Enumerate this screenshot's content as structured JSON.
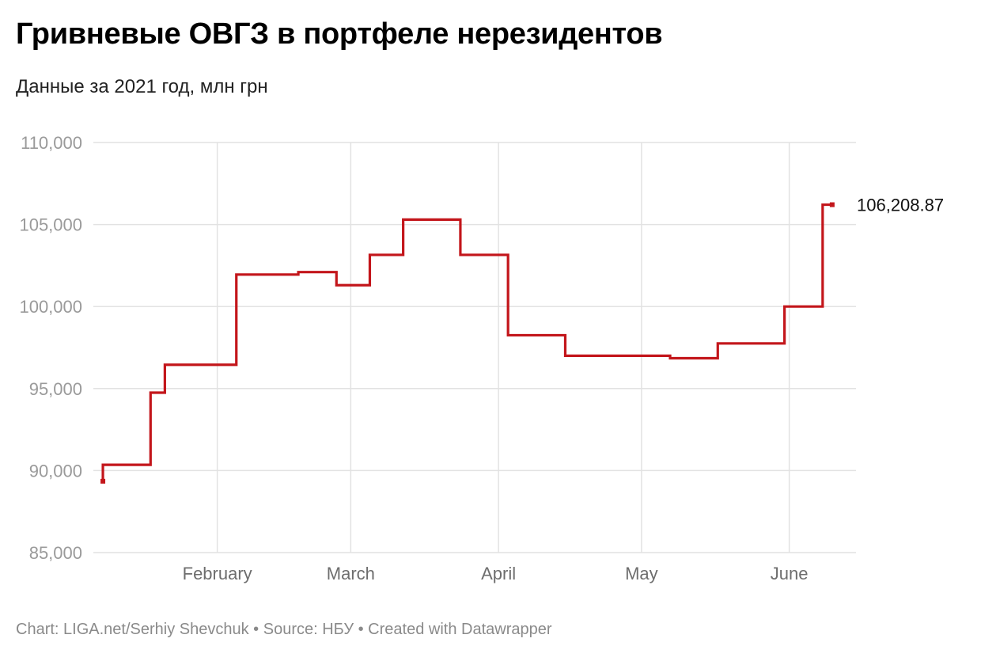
{
  "title": "Гривневые ОВГЗ в портфеле нерезидентов",
  "subtitle": "Данные за 2021 год, млн грн",
  "footer": {
    "chart_credit": "Chart: LIGA.net/Serhiy Shevchuk",
    "sep1": "•",
    "source": "Source: НБУ",
    "sep2": "•",
    "created": "Created with Datawrapper"
  },
  "colors": {
    "line": "#c3161b",
    "grid": "#e2e2e2",
    "tick_text": "#9a9a9a",
    "axis_label": "#6d6d6d"
  },
  "chart_data": {
    "type": "line",
    "interpolation": "step-after",
    "title": "Гривневые ОВГЗ в портфеле нерезидентов",
    "subtitle": "Данные за 2021 год, млн грн",
    "xlabel": "",
    "ylabel": "",
    "ylim": [
      85000,
      110000
    ],
    "xlim": [
      "2021-01-06",
      "2021-06-15"
    ],
    "y_ticks": [
      {
        "value": 110000,
        "label": "110,000"
      },
      {
        "value": 105000,
        "label": "105,000"
      },
      {
        "value": 100000,
        "label": "100,000"
      },
      {
        "value": 95000,
        "label": "95,000"
      },
      {
        "value": 90000,
        "label": "90,000"
      },
      {
        "value": 85000,
        "label": "85,000"
      }
    ],
    "x_ticks": [
      {
        "date": "2021-02-01",
        "label": "February"
      },
      {
        "date": "2021-03-01",
        "label": "March"
      },
      {
        "date": "2021-04-01",
        "label": "April"
      },
      {
        "date": "2021-05-01",
        "label": "May"
      },
      {
        "date": "2021-06-01",
        "label": "June"
      }
    ],
    "grid": true,
    "series": [
      {
        "name": "",
        "points": [
          {
            "date": "2021-01-08",
            "value": 89350
          },
          {
            "date": "2021-01-08",
            "value": 90350
          },
          {
            "date": "2021-01-18",
            "value": 94750
          },
          {
            "date": "2021-01-21",
            "value": 96450
          },
          {
            "date": "2021-02-05",
            "value": 101950
          },
          {
            "date": "2021-02-18",
            "value": 102100
          },
          {
            "date": "2021-02-26",
            "value": 101300
          },
          {
            "date": "2021-03-05",
            "value": 103150
          },
          {
            "date": "2021-03-12",
            "value": 105300
          },
          {
            "date": "2021-03-24",
            "value": 103150
          },
          {
            "date": "2021-04-03",
            "value": 98250
          },
          {
            "date": "2021-04-15",
            "value": 97000
          },
          {
            "date": "2021-05-07",
            "value": 96850
          },
          {
            "date": "2021-05-17",
            "value": 97750
          },
          {
            "date": "2021-05-31",
            "value": 100000
          },
          {
            "date": "2021-06-08",
            "value": 106208.87
          },
          {
            "date": "2021-06-10",
            "value": 106208.87
          }
        ],
        "last_value_label": "106,208.87"
      }
    ]
  }
}
